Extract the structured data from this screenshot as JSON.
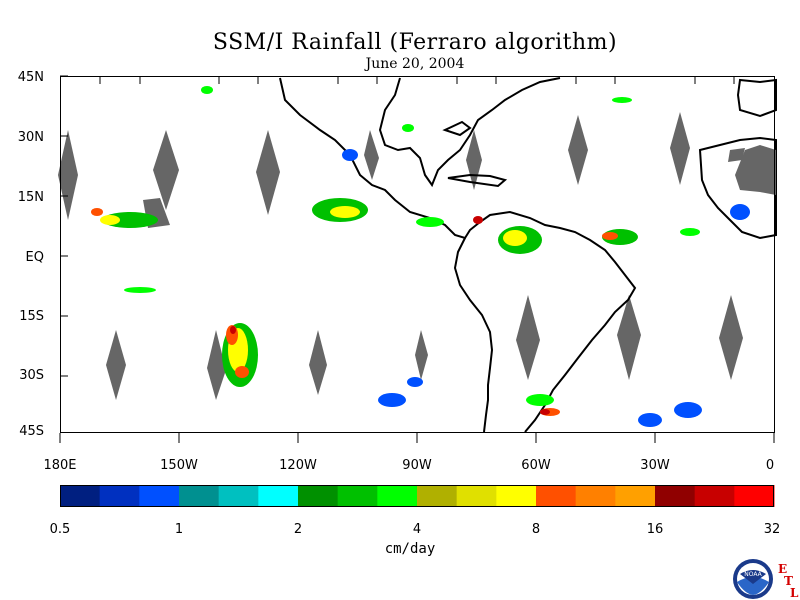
{
  "title": "SSM/I Rainfall (Ferraro algorithm)",
  "subtitle": "June 20, 2004",
  "lat_labels": [
    "45N",
    "30N",
    "15N",
    "EQ",
    "15S",
    "30S",
    "45S"
  ],
  "lon_labels": [
    "180E",
    "150W",
    "120W",
    "90W",
    "60W",
    "30W",
    "0"
  ],
  "colorbar": {
    "units": "cm/day",
    "tick_labels": [
      "0.5",
      "1",
      "2",
      "4",
      "8",
      "16",
      "32"
    ],
    "colors": [
      "#001f80",
      "#0030c0",
      "#0050ff",
      "#009090",
      "#00c0c0",
      "#00ffff",
      "#009000",
      "#00c000",
      "#00ff00",
      "#b0b000",
      "#e0e000",
      "#ffff00",
      "#ff5000",
      "#ff8000",
      "#ffa000",
      "#900000",
      "#c80000",
      "#ff0000"
    ]
  },
  "logo": {
    "agency": "NOAA",
    "side_text": [
      "E",
      "T",
      "L"
    ]
  },
  "chart_data": {
    "type": "map",
    "title": "SSM/I Rainfall (Ferraro algorithm)",
    "subtitle": "June 20, 2004",
    "lon_range": [
      -180,
      0
    ],
    "lat_range": [
      -45,
      45
    ],
    "units": "cm/day",
    "colorbar_ticks": [
      0.5,
      1,
      2,
      4,
      8,
      16,
      32
    ]
  }
}
